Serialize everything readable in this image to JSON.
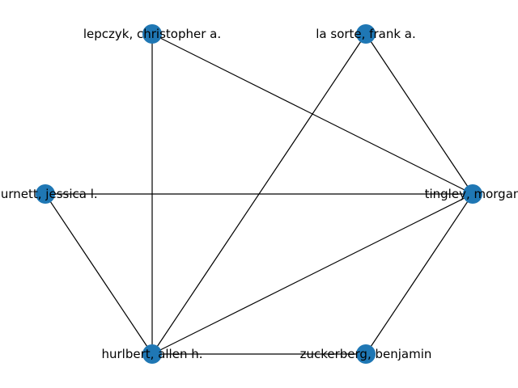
{
  "graph": {
    "node_color": "#1f77b4",
    "edge_color": "#000000",
    "nodes": [
      {
        "id": "lepczyk",
        "label": "lepczyk, christopher a."
      },
      {
        "id": "lasorte",
        "label": "la sorte, frank a."
      },
      {
        "id": "burnett",
        "label": "burnett, jessica l."
      },
      {
        "id": "tingley",
        "label": "tingley, morgan"
      },
      {
        "id": "hurlbert",
        "label": "hurlbert, allen h."
      },
      {
        "id": "zuckerberg",
        "label": "zuckerberg, benjamin"
      }
    ],
    "edges": [
      [
        "lepczyk",
        "hurlbert"
      ],
      [
        "lepczyk",
        "tingley"
      ],
      [
        "lasorte",
        "hurlbert"
      ],
      [
        "lasorte",
        "tingley"
      ],
      [
        "burnett",
        "tingley"
      ],
      [
        "burnett",
        "hurlbert"
      ],
      [
        "tingley",
        "hurlbert"
      ],
      [
        "tingley",
        "zuckerberg"
      ],
      [
        "hurlbert",
        "zuckerberg"
      ]
    ]
  }
}
